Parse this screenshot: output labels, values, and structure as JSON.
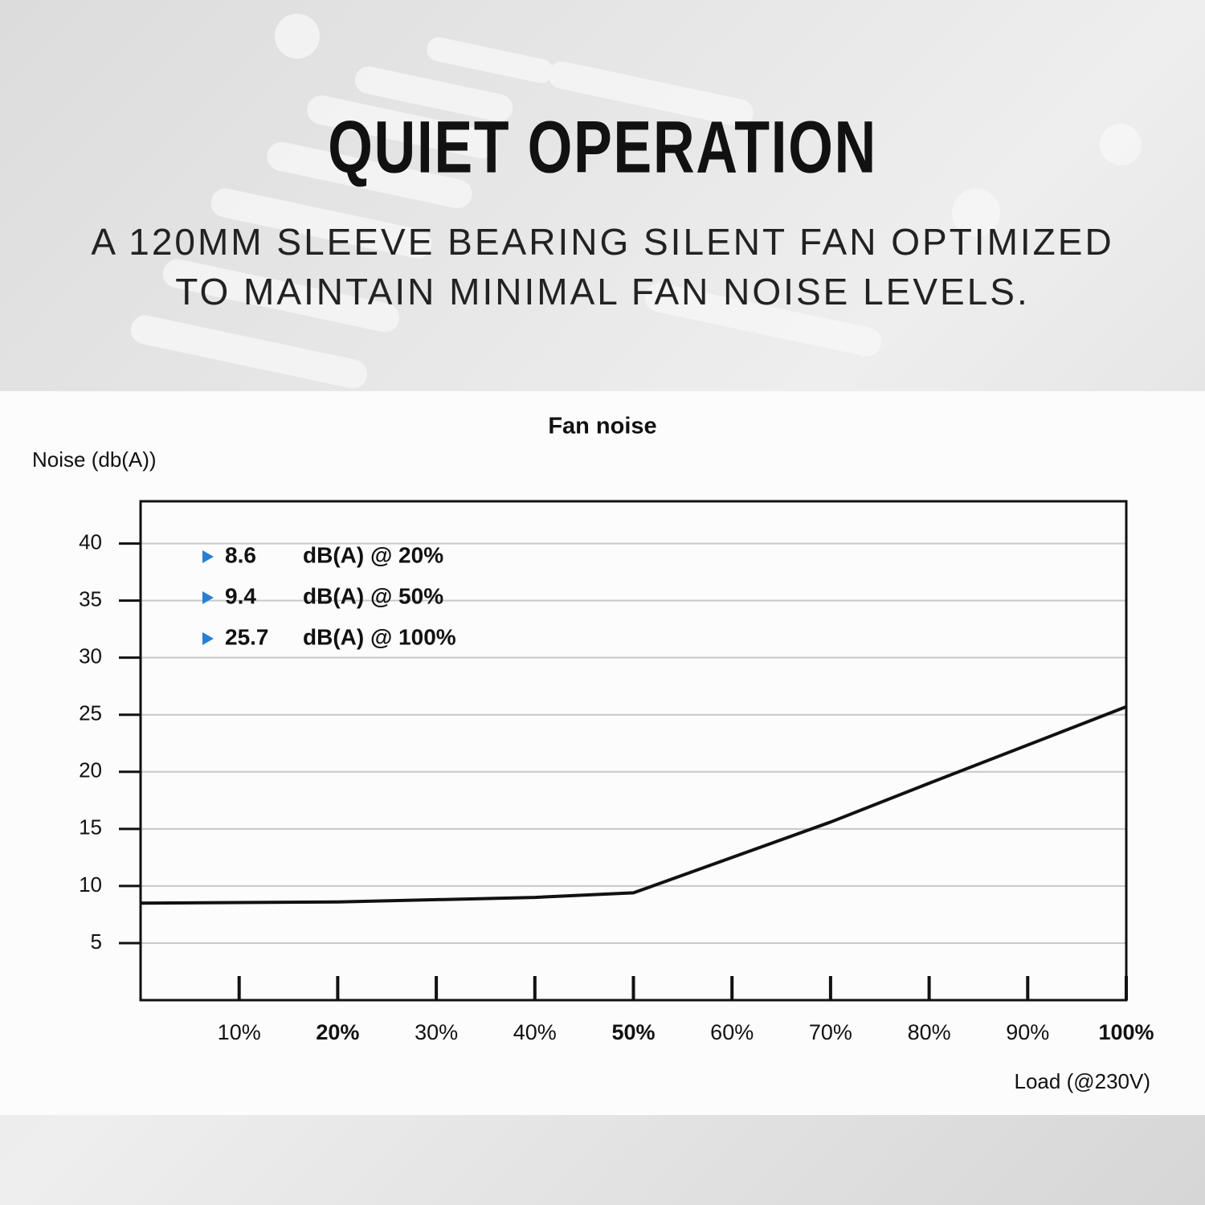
{
  "header": {
    "title": "QUIET OPERATION",
    "subtitle_lines": [
      "A 120MM SLEEVE BEARING SILENT FAN OPTIMIZED",
      "TO MAINTAIN MINIMAL FAN NOISE LEVELS."
    ]
  },
  "chart_data": {
    "type": "line",
    "title": "Fan noise",
    "y_label": "Noise (db(A))",
    "x_label": "Load (@230V)",
    "x": [
      0,
      20,
      40,
      50,
      70,
      80,
      100
    ],
    "series": [
      {
        "name": "Fan noise",
        "color": "#111111",
        "values": [
          8.5,
          8.6,
          9.0,
          9.4,
          15.6,
          19.0,
          25.7
        ]
      }
    ],
    "xlim": [
      0,
      100
    ],
    "xticks": [
      {
        "value": 10,
        "label": "10%"
      },
      {
        "value": 20,
        "label": "20%",
        "bold": true
      },
      {
        "value": 30,
        "label": "30%"
      },
      {
        "value": 40,
        "label": "40%"
      },
      {
        "value": 50,
        "label": "50%",
        "bold": true
      },
      {
        "value": 60,
        "label": "60%"
      },
      {
        "value": 70,
        "label": "70%"
      },
      {
        "value": 80,
        "label": "80%"
      },
      {
        "value": 90,
        "label": "90%"
      },
      {
        "value": 100,
        "label": "100%",
        "bold": true
      }
    ],
    "ylim": [
      0,
      43.7
    ],
    "yticks": [
      5,
      10,
      15,
      20,
      25,
      30,
      35,
      40
    ],
    "grid": true,
    "annotations": [
      {
        "value": 8.6,
        "text": "dB(A) @ 20%"
      },
      {
        "value": 9.4,
        "text": "dB(A) @ 50%"
      },
      {
        "value": 25.7,
        "text": "dB(A) @ 100%"
      }
    ],
    "annotation_marker_color": "#2a7fd0"
  }
}
